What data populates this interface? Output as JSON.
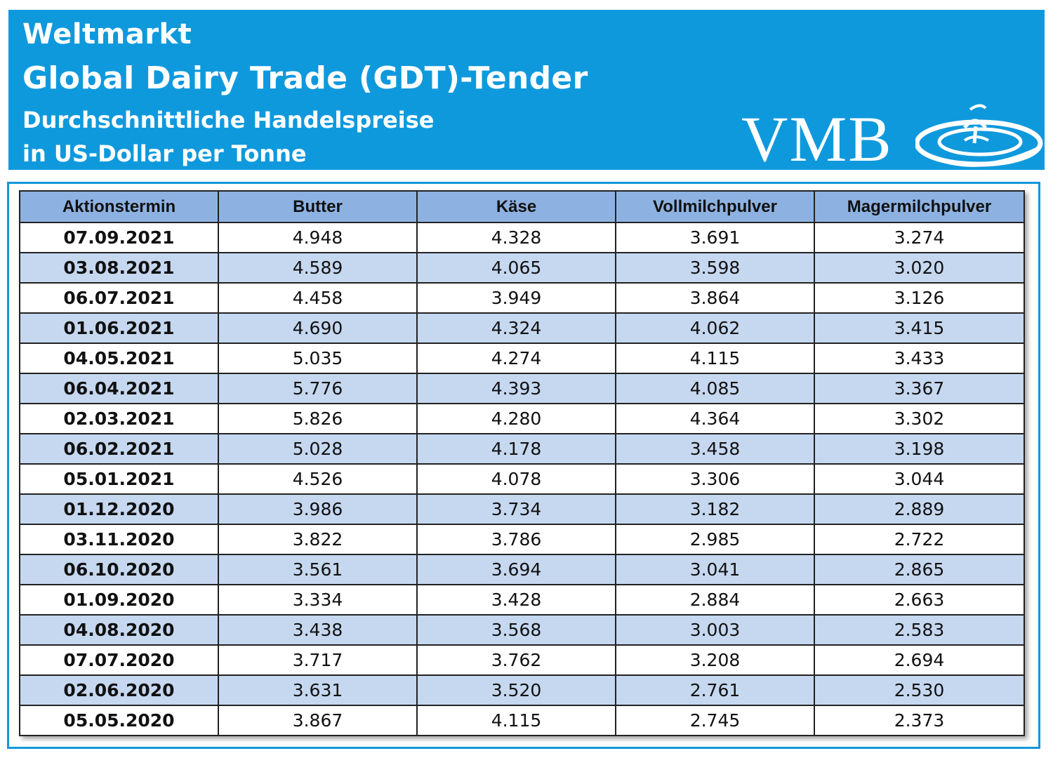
{
  "header": {
    "line1": "Weltmarkt",
    "line2": "Global Dairy Trade (GDT)-Tender",
    "line3": "Durchschnittliche Handelspreise",
    "line4": "in US-Dollar per Tonne",
    "logo_text": "VMB",
    "colors": {
      "banner": "#0f99dd",
      "header_row": "#8db2e2",
      "alt_row": "#c6d8f0"
    }
  },
  "table": {
    "columns": [
      "Aktionstermin",
      "Butter",
      "Käse",
      "Vollmilchpulver",
      "Magermilchpulver"
    ],
    "rows": [
      [
        "07.09.2021",
        "4.948",
        "4.328",
        "3.691",
        "3.274"
      ],
      [
        "03.08.2021",
        "4.589",
        "4.065",
        "3.598",
        "3.020"
      ],
      [
        "06.07.2021",
        "4.458",
        "3.949",
        "3.864",
        "3.126"
      ],
      [
        "01.06.2021",
        "4.690",
        "4.324",
        "4.062",
        "3.415"
      ],
      [
        "04.05.2021",
        "5.035",
        "4.274",
        "4.115",
        "3.433"
      ],
      [
        "06.04.2021",
        "5.776",
        "4.393",
        "4.085",
        "3.367"
      ],
      [
        "02.03.2021",
        "5.826",
        "4.280",
        "4.364",
        "3.302"
      ],
      [
        "06.02.2021",
        "5.028",
        "4.178",
        "3.458",
        "3.198"
      ],
      [
        "05.01.2021",
        "4.526",
        "4.078",
        "3.306",
        "3.044"
      ],
      [
        "01.12.2020",
        "3.986",
        "3.734",
        "3.182",
        "2.889"
      ],
      [
        "03.11.2020",
        "3.822",
        "3.786",
        "2.985",
        "2.722"
      ],
      [
        "06.10.2020",
        "3.561",
        "3.694",
        "3.041",
        "2.865"
      ],
      [
        "01.09.2020",
        "3.334",
        "3.428",
        "2.884",
        "2.663"
      ],
      [
        "04.08.2020",
        "3.438",
        "3.568",
        "3.003",
        "2.583"
      ],
      [
        "07.07.2020",
        "3.717",
        "3.762",
        "3.208",
        "2.694"
      ],
      [
        "02.06.2020",
        "3.631",
        "3.520",
        "2.761",
        "2.530"
      ],
      [
        "05.05.2020",
        "3.867",
        "4.115",
        "2.745",
        "2.373"
      ]
    ]
  }
}
